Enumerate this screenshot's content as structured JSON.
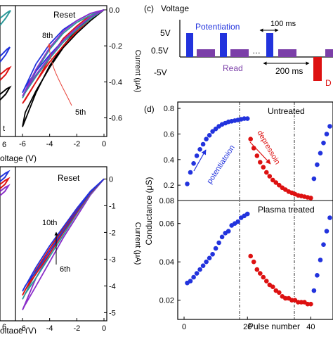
{
  "panels": {
    "tl": {
      "annotation": "Reset",
      "cycle_labels": [
        "8th",
        "5th"
      ],
      "partial_labels": [
        "6",
        "oltage (V)",
        "t"
      ],
      "x_ticks": [
        "-6",
        "-4",
        "-2",
        "0"
      ],
      "right_axis_label": "Current (μA)",
      "right_ticks": [
        "0.0",
        "-0.2",
        "-0.4",
        "-0.6"
      ]
    },
    "bl": {
      "annotation": "Reset",
      "cycle_labels": [
        "10th",
        "6th"
      ],
      "partial_labels": [
        "6",
        "oltage (V)"
      ],
      "x_ticks": [
        "-6",
        "-4",
        "-2",
        "0"
      ],
      "right_axis_label": "Current (μA)",
      "right_ticks": [
        "0",
        "-1",
        "-2",
        "-3",
        "-4",
        "-5"
      ]
    },
    "c": {
      "panel_label": "(c)",
      "title": "Voltage",
      "potentiation_label": "Potentiation",
      "read_label": "Read",
      "width_label_1": "100 ms",
      "width_label_2": "200 ms",
      "ellipsis": "…",
      "level_5v": "5V",
      "level_05v": "0.5V",
      "level_m5v": "-5V",
      "partial_label": "D"
    },
    "d": {
      "panel_label": "(d)",
      "y_label": "Conductance (μS)",
      "x_label": "Pulse number",
      "top_title": "Untreated",
      "bottom_title": "Plasma treated",
      "potentiation_label": "potentiatoion",
      "depression_label": "depressoin",
      "top_y_ticks": [
        "0.8",
        "0.6",
        "0.4",
        "0.2",
        "0.08"
      ],
      "bottom_y_ticks": [
        "0.06",
        "0.04",
        "0.02"
      ],
      "x_ticks": [
        "0",
        "20",
        "40"
      ]
    }
  },
  "colors": {
    "potentiation": "#2233dd",
    "depression": "#dd1111",
    "read": "#7b3fa8",
    "black": "#000000",
    "teal": "#2e9a9a",
    "purple": "#8b2fc9",
    "annotation_red": "#e8433a"
  },
  "chart_data": [
    {
      "id": "tl",
      "type": "line",
      "x_range": [
        -6,
        0
      ],
      "y_range": [
        -0.68,
        0.0
      ],
      "xlabel": "oltage (V)",
      "ylabel": "Current (μA)",
      "series": [
        {
          "color": "#000000",
          "x": [
            0,
            -1,
            -2,
            -3,
            -4,
            -5,
            -5.8,
            -6,
            -5,
            -4,
            -3,
            -2,
            -1,
            0
          ],
          "y": [
            0,
            -0.06,
            -0.13,
            -0.21,
            -0.32,
            -0.45,
            -0.57,
            -0.65,
            -0.46,
            -0.31,
            -0.2,
            -0.11,
            -0.04,
            0
          ]
        },
        {
          "color": "#dd1111",
          "x": [
            0,
            -1,
            -2,
            -3,
            -4,
            -5,
            -5.8,
            -6,
            -5,
            -4,
            -3,
            -2,
            -1,
            0
          ],
          "y": [
            0,
            -0.05,
            -0.12,
            -0.2,
            -0.29,
            -0.4,
            -0.5,
            -0.52,
            -0.4,
            -0.27,
            -0.16,
            -0.09,
            -0.03,
            0
          ]
        },
        {
          "color": "#2e9a9a",
          "x": [
            0,
            -1,
            -2,
            -3,
            -4,
            -5,
            -5.8,
            -6,
            -5,
            -4,
            -3,
            -2,
            -1,
            0
          ],
          "y": [
            0,
            -0.05,
            -0.11,
            -0.18,
            -0.27,
            -0.37,
            -0.46,
            -0.49,
            -0.34,
            -0.22,
            -0.13,
            -0.07,
            -0.03,
            0
          ]
        },
        {
          "color": "#2233dd",
          "x": [
            0,
            -1,
            -2,
            -3,
            -4,
            -5,
            -5.8,
            -6,
            -5,
            -4,
            -3,
            -2,
            -1,
            0
          ],
          "y": [
            0,
            -0.04,
            -0.1,
            -0.17,
            -0.25,
            -0.34,
            -0.43,
            -0.46,
            -0.3,
            -0.19,
            -0.11,
            -0.06,
            -0.02,
            0
          ]
        },
        {
          "color": "#8b2fc9",
          "x": [
            0,
            -1,
            -2,
            -3,
            -4,
            -5,
            -5.8,
            -6,
            -5,
            -4,
            -3,
            -2,
            -1,
            0
          ],
          "y": [
            0,
            -0.04,
            -0.1,
            -0.17,
            -0.26,
            -0.36,
            -0.45,
            -0.48,
            -0.33,
            -0.21,
            -0.12,
            -0.06,
            -0.02,
            0
          ]
        }
      ]
    },
    {
      "id": "bl",
      "type": "line",
      "x_range": [
        -6,
        0
      ],
      "y_range": [
        -5.2,
        0.3
      ],
      "xlabel": "oltage (V)",
      "ylabel": "Current (μA)",
      "series": [
        {
          "color": "#8b2fc9",
          "x": [
            0,
            -1,
            -2,
            -3,
            -4,
            -5,
            -5.8,
            -6,
            -5,
            -4,
            -3,
            -2,
            -1,
            0
          ],
          "y": [
            0,
            -0.6,
            -1.4,
            -2.2,
            -3.1,
            -4.0,
            -4.7,
            -4.9,
            -3.7,
            -2.8,
            -2.0,
            -1.25,
            -0.55,
            0
          ]
        },
        {
          "color": "#2e9a9a",
          "x": [
            0,
            -1,
            -2,
            -3,
            -4,
            -5,
            -5.8,
            -6,
            -5,
            -4,
            -3,
            -2,
            -1,
            0
          ],
          "y": [
            0,
            -0.55,
            -1.3,
            -2.1,
            -2.9,
            -3.7,
            -4.3,
            -4.5,
            -3.5,
            -2.7,
            -1.9,
            -1.2,
            -0.5,
            0
          ]
        },
        {
          "color": "#dd1111",
          "x": [
            0,
            -1,
            -2,
            -3,
            -4,
            -5,
            -5.8,
            -6,
            -5,
            -4,
            -3,
            -2,
            -1,
            0
          ],
          "y": [
            0,
            -0.52,
            -1.25,
            -2.0,
            -2.8,
            -3.55,
            -4.15,
            -4.35,
            -3.4,
            -2.6,
            -1.85,
            -1.15,
            -0.48,
            0
          ]
        },
        {
          "color": "#2233dd",
          "x": [
            0,
            -1,
            -2,
            -3,
            -4,
            -5,
            -5.8,
            -6,
            -5,
            -4,
            -3,
            -2,
            -1,
            0
          ],
          "y": [
            0,
            -0.5,
            -1.2,
            -1.95,
            -2.7,
            -3.45,
            -4.0,
            -4.2,
            -3.3,
            -2.5,
            -1.8,
            -1.1,
            -0.46,
            0
          ]
        }
      ]
    },
    {
      "id": "d_top",
      "type": "scatter",
      "title": "Untreated",
      "x_range": [
        -2,
        47
      ],
      "y_range": [
        0.08,
        0.85
      ],
      "series": [
        {
          "name": "potentiatoion",
          "color": "#2233dd",
          "x": [
            1,
            2,
            3,
            4,
            5,
            6,
            7,
            8,
            9,
            10,
            11,
            12,
            13,
            14,
            15,
            16,
            17,
            18,
            19,
            20
          ],
          "y": [
            0.21,
            0.3,
            0.37,
            0.43,
            0.48,
            0.52,
            0.56,
            0.59,
            0.62,
            0.64,
            0.66,
            0.675,
            0.685,
            0.695,
            0.7,
            0.705,
            0.71,
            0.715,
            0.72,
            0.72
          ]
        },
        {
          "name": "depressoin",
          "color": "#dd1111",
          "x": [
            21,
            22,
            23,
            24,
            25,
            26,
            27,
            28,
            29,
            30,
            31,
            32,
            33,
            34,
            35,
            36,
            37,
            38,
            39,
            40
          ],
          "y": [
            0.56,
            0.49,
            0.43,
            0.38,
            0.34,
            0.3,
            0.27,
            0.24,
            0.22,
            0.2,
            0.18,
            0.165,
            0.15,
            0.14,
            0.13,
            0.12,
            0.115,
            0.11,
            0.105,
            0.1
          ]
        },
        {
          "name": "",
          "color": "#2233dd",
          "x": [
            41,
            42,
            43,
            44,
            45,
            46
          ],
          "y": [
            0.25,
            0.36,
            0.45,
            0.53,
            0.6,
            0.66
          ]
        }
      ]
    },
    {
      "id": "d_bottom",
      "type": "scatter",
      "title": "Plasma treated",
      "x_range": [
        -2,
        47
      ],
      "y_range": [
        0.01,
        0.072
      ],
      "series": [
        {
          "name": "",
          "color": "#2233dd",
          "x": [
            1,
            2,
            3,
            4,
            5,
            6,
            7,
            8,
            9,
            10,
            11,
            12,
            13,
            14,
            15,
            16,
            17,
            18,
            19,
            20
          ],
          "y": [
            0.029,
            0.03,
            0.032,
            0.034,
            0.036,
            0.038,
            0.04,
            0.042,
            0.044,
            0.047,
            0.05,
            0.053,
            0.055,
            0.056,
            0.059,
            0.06,
            0.061,
            0.063,
            0.064,
            0.065
          ]
        },
        {
          "name": "",
          "color": "#dd1111",
          "x": [
            21,
            22,
            23,
            24,
            25,
            26,
            27,
            28,
            29,
            30,
            31,
            32,
            33,
            34,
            35,
            36,
            37,
            38,
            39,
            40
          ],
          "y": [
            0.043,
            0.04,
            0.036,
            0.034,
            0.032,
            0.03,
            0.028,
            0.027,
            0.025,
            0.024,
            0.022,
            0.021,
            0.021,
            0.02,
            0.02,
            0.019,
            0.019,
            0.019,
            0.018,
            0.018
          ]
        },
        {
          "name": "",
          "color": "#2233dd",
          "x": [
            41,
            42,
            43,
            44,
            45,
            46
          ],
          "y": [
            0.025,
            0.033,
            0.041,
            0.049,
            0.056,
            0.063
          ]
        }
      ]
    }
  ]
}
